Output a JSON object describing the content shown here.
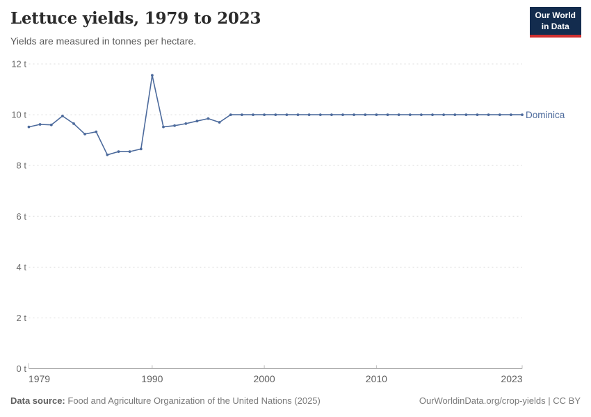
{
  "header": {
    "title": "Lettuce yields, 1979 to 2023",
    "subtitle": "Yields are measured in tonnes per hectare.",
    "logo": {
      "line1": "Our World",
      "line2": "in Data"
    }
  },
  "chart_data": {
    "type": "line",
    "title": "Lettuce yields, 1979 to 2023",
    "subtitle": "Yields are measured in tonnes per hectare.",
    "unit": "tonnes per hectare",
    "xlabel": "",
    "ylabel": "",
    "xlim": [
      1979,
      2023
    ],
    "ylim": [
      0,
      12
    ],
    "grid": true,
    "legend_position": "right-end-of-line",
    "y_ticks": [
      {
        "value": 0,
        "label": "0 t"
      },
      {
        "value": 2,
        "label": "2 t"
      },
      {
        "value": 4,
        "label": "4 t"
      },
      {
        "value": 6,
        "label": "6 t"
      },
      {
        "value": 8,
        "label": "8 t"
      },
      {
        "value": 10,
        "label": "10 t"
      },
      {
        "value": 12,
        "label": "12 t"
      }
    ],
    "x_ticks": [
      {
        "value": 1979,
        "label": "1979"
      },
      {
        "value": 1990,
        "label": "1990"
      },
      {
        "value": 2000,
        "label": "2000"
      },
      {
        "value": 2010,
        "label": "2010"
      },
      {
        "value": 2023,
        "label": "2023"
      }
    ],
    "series": [
      {
        "name": "Dominica",
        "color": "#4c6a9c",
        "x": [
          1979,
          1980,
          1981,
          1982,
          1983,
          1984,
          1985,
          1986,
          1987,
          1988,
          1989,
          1990,
          1991,
          1992,
          1993,
          1994,
          1995,
          1996,
          1997,
          1998,
          1999,
          2000,
          2001,
          2002,
          2003,
          2004,
          2005,
          2006,
          2007,
          2008,
          2009,
          2010,
          2011,
          2012,
          2013,
          2014,
          2015,
          2016,
          2017,
          2018,
          2019,
          2020,
          2021,
          2022,
          2023
        ],
        "values": [
          9.52,
          9.62,
          9.6,
          9.95,
          9.65,
          9.24,
          9.33,
          8.42,
          8.55,
          8.55,
          8.65,
          11.55,
          9.52,
          9.57,
          9.65,
          9.75,
          9.85,
          9.7,
          10,
          10,
          10,
          10,
          10,
          10,
          10,
          10,
          10,
          10,
          10,
          10,
          10,
          10,
          10,
          10,
          10,
          10,
          10,
          10,
          10,
          10,
          10,
          10,
          10,
          10,
          10
        ]
      }
    ]
  },
  "footer": {
    "source_label": "Data source:",
    "source_text": "Food and Agriculture Organization of the United Nations (2025)",
    "attribution": "OurWorldinData.org/crop-yields | CC BY"
  },
  "colors": {
    "line": "#4c6a9c",
    "entity_label": "#4c6a9c",
    "gridline": "#dcdcdc",
    "axis": "#9e9e9e",
    "tick": "#bdbdbd",
    "y_tick_text": "#6e6e6e",
    "x_tick_text": "#5f5f5f",
    "title": "#2b2b2b",
    "subtitle": "#5a5a5a",
    "logo_bg": "#132c4e",
    "logo_stripe": "#cf2f2f"
  }
}
